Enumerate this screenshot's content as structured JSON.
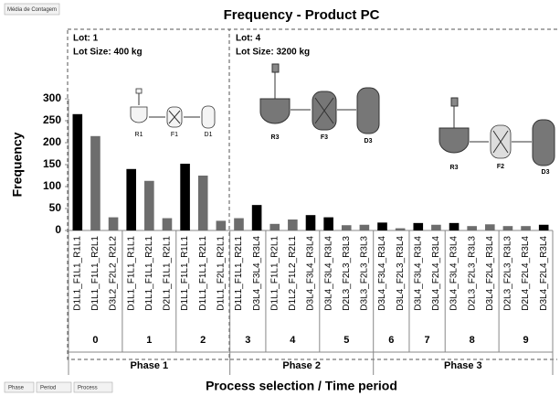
{
  "buttons": {
    "measure": "Média de Contagem",
    "fields": [
      "Phase",
      "Period",
      "Process"
    ]
  },
  "chart_data": {
    "type": "bar",
    "title": "Frequency - Product PC",
    "y_label": "Frequency",
    "x_label": "Process selection / Time period",
    "ylim": [
      0,
      300
    ],
    "yticks": [
      0,
      50,
      100,
      150,
      200,
      250,
      300
    ],
    "annotations": [
      {
        "lot": "Lot: 1",
        "size": "Lot Size: 400 kg"
      },
      {
        "lot": "Lot: 4",
        "size": "Lot Size: 3200 kg"
      }
    ],
    "diagrams": [
      {
        "labels": [
          "R1",
          "F1",
          "D1"
        ]
      },
      {
        "labels": [
          "R3",
          "F3",
          "D3"
        ]
      },
      {
        "labels": [
          "R3",
          "F2",
          "D3"
        ]
      }
    ],
    "phases": [
      {
        "label": "Phase 1",
        "periods": [
          {
            "label": "0",
            "categories": [
              "D1L1_F1L1_R1L1",
              "D1L1_F1L1_R2L1",
              "D3L2_F2L2_R2L2"
            ],
            "values": [
              265,
              215,
              30
            ],
            "colors": [
              "#000000",
              "#6d6d6d",
              "#6d6d6d"
            ]
          },
          {
            "label": "1",
            "categories": [
              "D1L1_F1L1_R1L1",
              "D1L1_F1L1_R2L1",
              "D2L1_F1L1_R2L1"
            ],
            "values": [
              140,
              113,
              28
            ],
            "colors": [
              "#000000",
              "#6d6d6d",
              "#6d6d6d"
            ]
          },
          {
            "label": "2",
            "categories": [
              "D1L1_F1L1_R1L1",
              "D1L1_F1L1_R2L1",
              "D1L1_F2L1_R2L1"
            ],
            "values": [
              152,
              125,
              22
            ],
            "colors": [
              "#000000",
              "#6d6d6d",
              "#6d6d6d"
            ]
          }
        ]
      },
      {
        "label": "Phase 2",
        "periods": [
          {
            "label": "3",
            "categories": [
              "D1L1_F1L1_R2L1",
              "D3L4_F3L4_R3L4"
            ],
            "values": [
              28,
              58
            ],
            "colors": [
              "#6d6d6d",
              "#000000"
            ]
          },
          {
            "label": "4",
            "categories": [
              "D1L1_F1L1_R2L1",
              "D1L2_F1L2_R2L1",
              "D3L4_F3L4_R3L4"
            ],
            "values": [
              15,
              25,
              35
            ],
            "colors": [
              "#6d6d6d",
              "#6d6d6d",
              "#000000"
            ]
          },
          {
            "label": "5",
            "categories": [
              "D3L4_F3L4_R3L4",
              "D2L3_F2L3_R3L3",
              "D3L3_F2L3_R3L3"
            ],
            "values": [
              30,
              12,
              13
            ],
            "colors": [
              "#000000",
              "#6d6d6d",
              "#6d6d6d"
            ]
          }
        ]
      },
      {
        "label": "Phase 3",
        "periods": [
          {
            "label": "6",
            "categories": [
              "D3L4_F3L4_R3L4",
              "D3L4_F2L3_R3L4"
            ],
            "values": [
              18,
              5
            ],
            "colors": [
              "#000000",
              "#6d6d6d"
            ]
          },
          {
            "label": "7",
            "categories": [
              "D3L4_F3L4_R3L4",
              "D3L4_F2L4_R3L4"
            ],
            "values": [
              17,
              13
            ],
            "colors": [
              "#000000",
              "#6d6d6d"
            ]
          },
          {
            "label": "8",
            "categories": [
              "D3L4_F3L4_R3L4",
              "D2L3_F2L3_R3L3",
              "D3L4_F2L4_R3L4"
            ],
            "values": [
              17,
              10,
              14
            ],
            "colors": [
              "#000000",
              "#6d6d6d",
              "#6d6d6d"
            ]
          },
          {
            "label": "9",
            "categories": [
              "D2L3_F2L3_R3L3",
              "D2L4_F2L4_R3L4",
              "D3L4_F2L4_R3L4"
            ],
            "values": [
              10,
              10,
              13
            ],
            "colors": [
              "#6d6d6d",
              "#6d6d6d",
              "#000000"
            ]
          }
        ]
      }
    ]
  }
}
